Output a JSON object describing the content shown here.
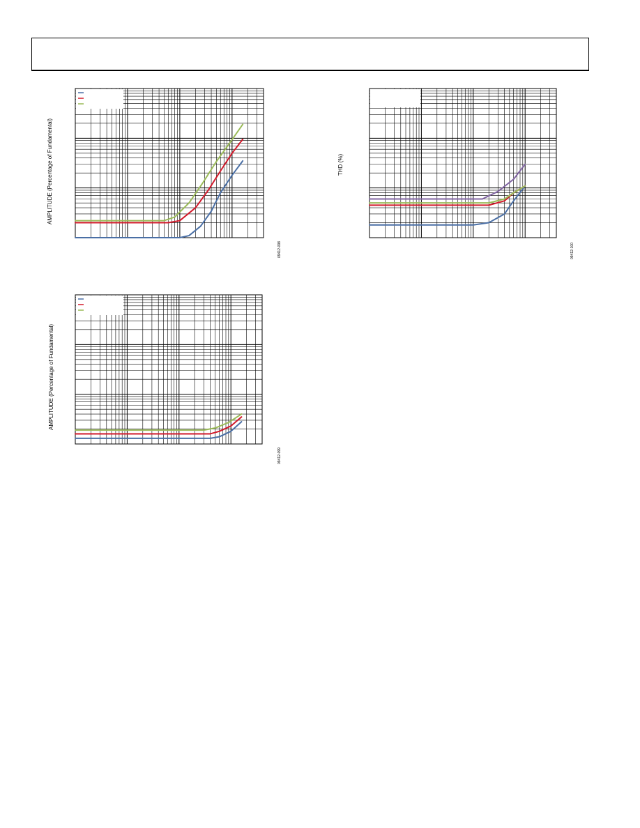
{
  "header": {
    "text": ""
  },
  "chart_data": [
    {
      "type": "line",
      "title": "",
      "xlabel": "",
      "ylabel": "AMPLITUDE (Percentage of Fundamental)",
      "figure_id": "09412-098",
      "xscale": "log",
      "yscale": "log",
      "xlim": [
        0.1,
        400
      ],
      "ylim": [
        0.0001,
        0.1
      ],
      "grid": true,
      "legend": "top-left",
      "series": [
        {
          "color": "#4a6fa5",
          "x": [
            0.1,
            10,
            15,
            25,
            40,
            60,
            100,
            160
          ],
          "y": [
            0.0001,
            0.0001,
            0.00011,
            0.00017,
            0.00034,
            0.0008,
            0.0018,
            0.0035
          ]
        },
        {
          "color": "#d21a2b",
          "x": [
            0.1,
            6,
            10,
            20,
            35,
            60,
            100,
            160
          ],
          "y": [
            0.0002,
            0.0002,
            0.00022,
            0.0004,
            0.0009,
            0.0022,
            0.005,
            0.0095
          ]
        },
        {
          "color": "#9bbb59",
          "x": [
            0.1,
            5,
            8,
            15,
            28,
            50,
            90,
            160
          ],
          "y": [
            0.00022,
            0.00022,
            0.00026,
            0.0005,
            0.0013,
            0.0034,
            0.008,
            0.019
          ]
        }
      ]
    },
    {
      "type": "line",
      "title": "",
      "xlabel": "",
      "ylabel": "THD (%)",
      "figure_id": "09412-100",
      "xscale": "log",
      "yscale": "log",
      "xlim": [
        0.1,
        400
      ],
      "ylim": [
        0.0001,
        0.1
      ],
      "grid": true,
      "legend": "",
      "series": [
        {
          "color": "#4a6fa5",
          "x": [
            0.1,
            10,
            20,
            40,
            60,
            100
          ],
          "y": [
            0.00018,
            0.00018,
            0.0002,
            0.0003,
            0.00055,
            0.0011
          ]
        },
        {
          "color": "#d21a2b",
          "x": [
            0.1,
            20,
            40,
            60,
            100
          ],
          "y": [
            0.00045,
            0.00045,
            0.00055,
            0.0008,
            0.0011
          ]
        },
        {
          "color": "#9bbb59",
          "x": [
            0.1,
            20,
            40,
            60,
            100
          ],
          "y": [
            0.0005,
            0.0005,
            0.0006,
            0.0008,
            0.0011
          ]
        },
        {
          "color": "#8064a2",
          "x": [
            0.1,
            15,
            30,
            60,
            100
          ],
          "y": [
            0.0006,
            0.0006,
            0.00085,
            0.0015,
            0.003
          ]
        }
      ]
    },
    {
      "type": "line",
      "title": "",
      "xlabel": "",
      "ylabel": "AMPLITUDE (Percentage of Fundamental)",
      "figure_id": "09412-099",
      "xscale": "log",
      "yscale": "log",
      "xlim": [
        0.1,
        400
      ],
      "ylim": [
        0.0001,
        0.1
      ],
      "grid": true,
      "legend": "top-left",
      "series": [
        {
          "color": "#4a6fa5",
          "x": [
            0.1,
            40,
            60,
            100,
            160
          ],
          "y": [
            0.00013,
            0.00013,
            0.00014,
            0.00018,
            0.00028
          ]
        },
        {
          "color": "#d21a2b",
          "x": [
            0.1,
            40,
            60,
            100,
            160
          ],
          "y": [
            0.00016,
            0.00016,
            0.00018,
            0.00023,
            0.00035
          ]
        },
        {
          "color": "#9bbb59",
          "x": [
            0.1,
            30,
            50,
            90,
            160
          ],
          "y": [
            0.00019,
            0.00019,
            0.00021,
            0.00027,
            0.0004
          ]
        }
      ]
    }
  ]
}
